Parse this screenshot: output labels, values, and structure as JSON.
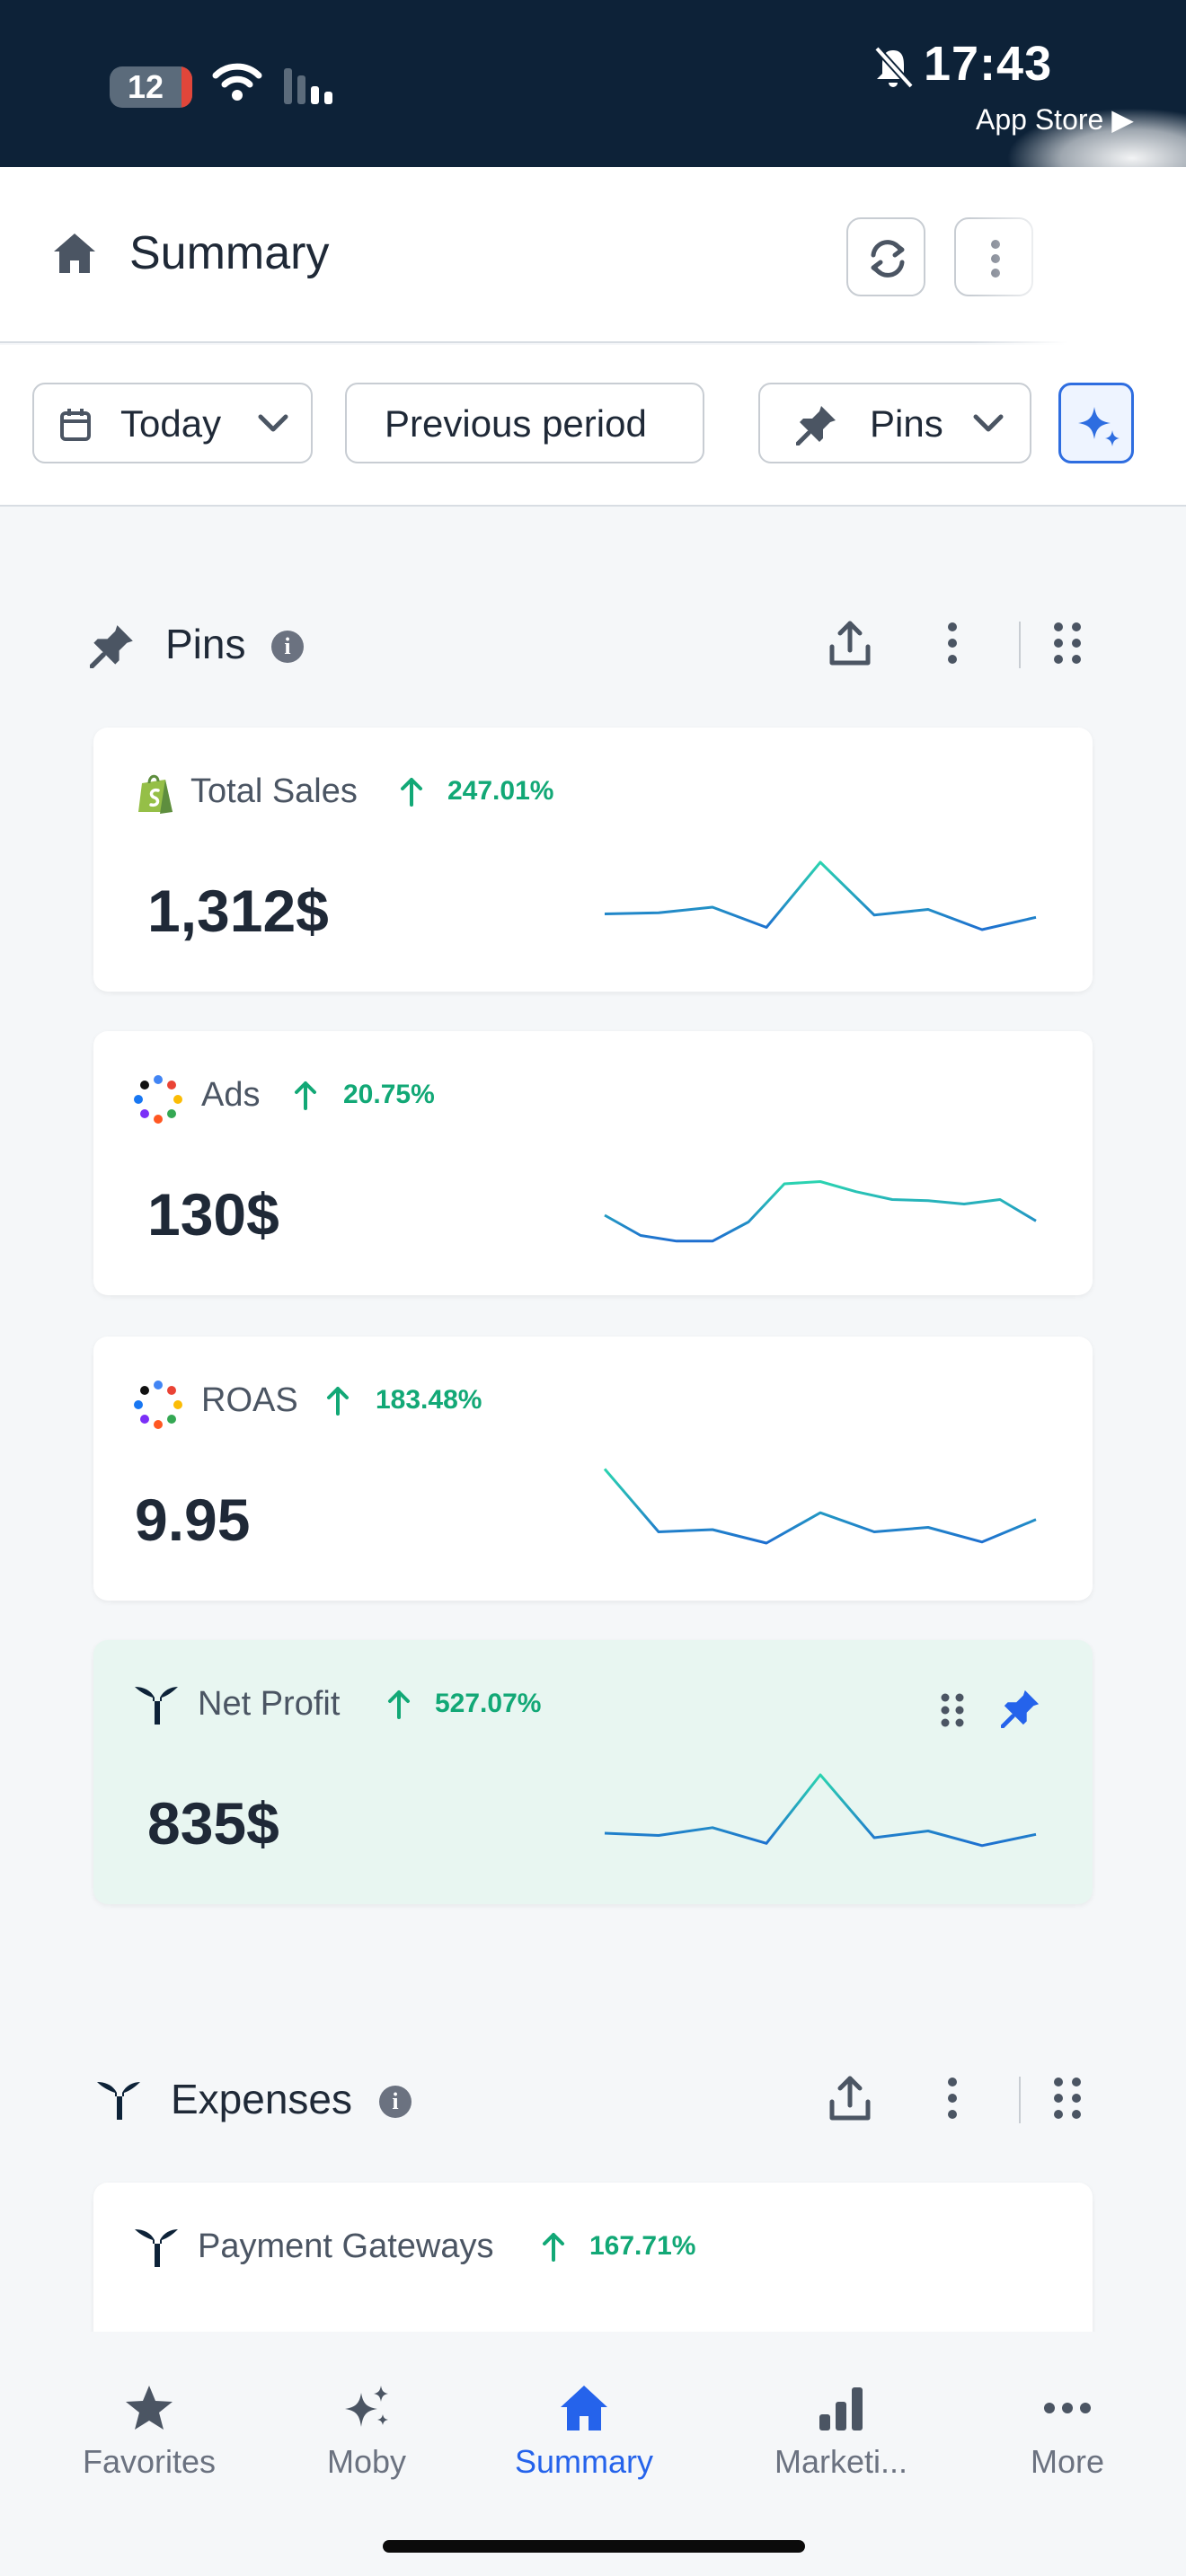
{
  "status_bar": {
    "battery": "12",
    "time": "17:43",
    "back_app": "App Store ▶"
  },
  "header": {
    "title": "Summary"
  },
  "filters": {
    "date": "Today",
    "compare": "Previous period",
    "view": "Pins"
  },
  "pins_section": {
    "title": "Pins",
    "info": "i",
    "cards": [
      {
        "name": "Total Sales",
        "change": "247.01%",
        "value": "1,312$",
        "source_icon": "shopify-icon",
        "trend": [
          3.0,
          3.1,
          3.6,
          1.8,
          7.6,
          2.9,
          3.4,
          1.6,
          2.7
        ]
      },
      {
        "name": "Ads",
        "change": "20.75%",
        "value": "130$",
        "source_icon": "multi-source-icon",
        "trend": [
          3.2,
          1.4,
          0.9,
          0.9,
          2.6,
          6.0,
          6.2,
          5.3,
          4.6,
          4.5,
          4.2,
          4.6,
          2.7
        ]
      },
      {
        "name": "ROAS",
        "change": "183.48%",
        "value": "9.95",
        "source_icon": "multi-source-icon",
        "trend": [
          7.8,
          2.2,
          2.4,
          1.2,
          3.9,
          2.2,
          2.6,
          1.3,
          3.3
        ]
      },
      {
        "name": "Net Profit",
        "change": "527.07%",
        "value": "835$",
        "source_icon": "triple-whale-icon",
        "trend": [
          2.4,
          2.2,
          2.9,
          1.5,
          7.6,
          2.0,
          2.6,
          1.3,
          2.3
        ],
        "pinned": true
      }
    ]
  },
  "expenses_section": {
    "title": "Expenses",
    "info": "i",
    "cards": [
      {
        "name": "Payment Gateways",
        "change": "167.71%",
        "source_icon": "triple-whale-icon"
      }
    ]
  },
  "bottom_nav": [
    {
      "label": "Favorites",
      "icon": "star-icon",
      "active": false
    },
    {
      "label": "Moby",
      "icon": "sparkles-icon",
      "active": false
    },
    {
      "label": "Summary",
      "icon": "home-icon",
      "active": true
    },
    {
      "label": "Marketi...",
      "icon": "bar-chart-icon",
      "active": false
    },
    {
      "label": "More",
      "icon": "more-dots-icon",
      "active": false
    }
  ],
  "colors": {
    "status_bar_bg": "#0d2238",
    "accent": "#2563eb",
    "positive": "#12a876",
    "highlight_card": "#e8f6f1"
  }
}
